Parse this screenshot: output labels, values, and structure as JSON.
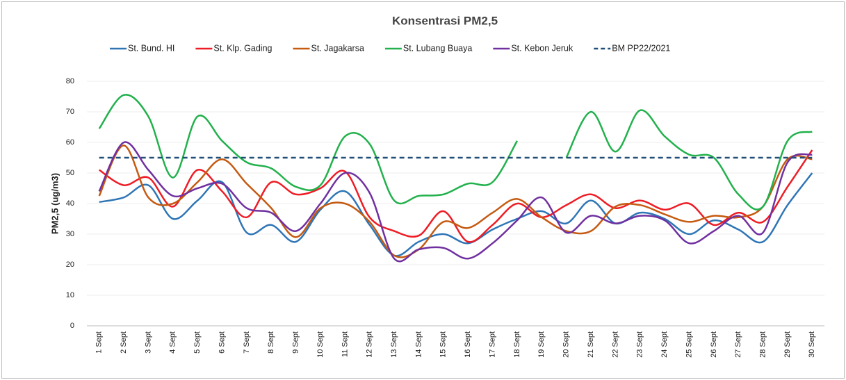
{
  "chart_data": {
    "type": "line",
    "title": "Konsentrasi PM2,5",
    "y_label": "PM2,5 (ug/m3)",
    "categories": [
      "1 Sept",
      "2 Sept",
      "3 Sept",
      "4 Sept",
      "5 Sept",
      "6 Sept",
      "7 Sept",
      "8 Sept",
      "9 Sept",
      "10 Sept",
      "11 Sept",
      "12 Sept",
      "13 Sept",
      "14 Sept",
      "15 Sept",
      "16 Sept",
      "17 Sept",
      "18 Sept",
      "19 Sept",
      "20 Sept",
      "21 Sept",
      "22 Sept",
      "23 Sept",
      "24 Sept",
      "25 Sept",
      "26 Sept",
      "27 Sept",
      "28 Sept",
      "29 Sept",
      "30 Sept"
    ],
    "ylim": [
      0,
      80
    ],
    "yticks": [
      0,
      10,
      20,
      30,
      40,
      50,
      60,
      70,
      80
    ],
    "grid": true,
    "series": [
      {
        "name": "St. Bund. HI",
        "color": "#2e75b6",
        "values": [
          40.5,
          42,
          46,
          35,
          41,
          47,
          30.5,
          33,
          27.5,
          38,
          44,
          33,
          23,
          27.5,
          30,
          27,
          31.5,
          35,
          37.5,
          33.5,
          41,
          33.5,
          37,
          35,
          30,
          34.5,
          31.5,
          27.5,
          39.5,
          50
        ]
      },
      {
        "name": "St. Klp. Gading",
        "color": "#ee1c25",
        "values": [
          51,
          46,
          48.5,
          39,
          51,
          44,
          35.5,
          47,
          43,
          45,
          50.5,
          35.5,
          31,
          29.5,
          37.5,
          27.5,
          33,
          40,
          35.5,
          39.5,
          43,
          38.5,
          41,
          38,
          40,
          33,
          37,
          34,
          45.5,
          57.5
        ]
      },
      {
        "name": "St. Jagakarsa",
        "color": "#c55a11",
        "values": [
          42.5,
          59,
          42,
          40,
          47,
          54.5,
          46.5,
          38.5,
          29,
          38.5,
          40,
          34,
          23,
          25,
          34,
          32,
          37,
          41.5,
          35.5,
          31,
          31,
          39,
          39.5,
          36.5,
          34,
          36,
          35.5,
          39,
          54.5,
          54.5
        ]
      },
      {
        "name": "St. Lubang Buaya",
        "color": "#22b14c",
        "values": [
          64.5,
          75.5,
          68.5,
          48.5,
          68.5,
          60.5,
          53.5,
          51.5,
          45.5,
          46,
          62,
          59.5,
          41,
          42.5,
          43,
          46.5,
          47,
          60.5,
          null,
          55,
          70,
          57,
          70.5,
          62,
          56,
          55,
          43,
          39,
          60.5,
          63.5
        ]
      },
      {
        "name": "St. Kebon Jeruk",
        "color": "#7030a0",
        "values": [
          44,
          60,
          51,
          42.5,
          45,
          46.5,
          38.5,
          37,
          31,
          40,
          50,
          43.5,
          22,
          25,
          25.5,
          22,
          27,
          34.5,
          42,
          30.5,
          36,
          33.5,
          36,
          34.5,
          27,
          31,
          36,
          30.5,
          53.5,
          56
        ]
      },
      {
        "name": "BM PP22/2021",
        "color": "#1f4e79",
        "dashed": true,
        "values": [
          55,
          55,
          55,
          55,
          55,
          55,
          55,
          55,
          55,
          55,
          55,
          55,
          55,
          55,
          55,
          55,
          55,
          55,
          55,
          55,
          55,
          55,
          55,
          55,
          55,
          55,
          55,
          55,
          55,
          55
        ]
      }
    ]
  }
}
